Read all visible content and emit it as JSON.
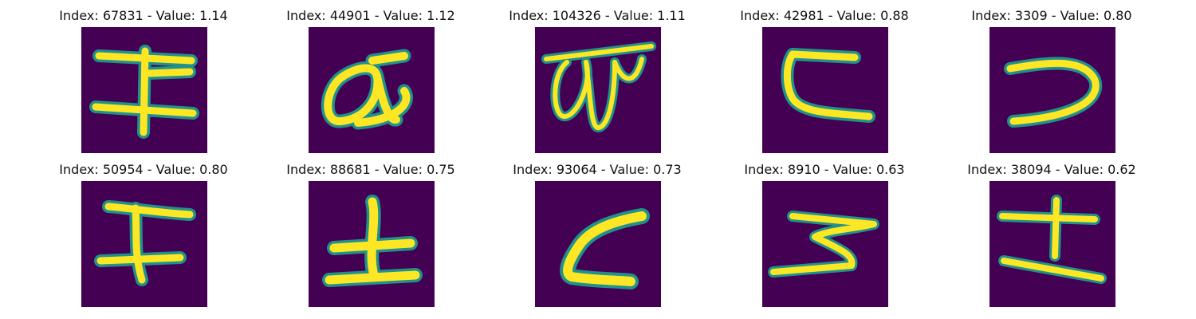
{
  "panels": [
    {
      "title": "Index: 67831 - Value: 1.14"
    },
    {
      "title": "Index: 44901 - Value: 1.12"
    },
    {
      "title": "Index: 104326 - Value: 1.11"
    },
    {
      "title": "Index: 42981 - Value: 0.88"
    },
    {
      "title": "Index: 3309 - Value: 0.80"
    },
    {
      "title": "Index: 50954 - Value: 0.80"
    },
    {
      "title": "Index: 88681 - Value: 0.75"
    },
    {
      "title": "Index: 93064 - Value: 0.73"
    },
    {
      "title": "Index: 8910 - Value: 0.63"
    },
    {
      "title": "Index: 38094 - Value: 0.62"
    }
  ],
  "colors": {
    "background": "#440154",
    "stroke_outer": "#21918c",
    "stroke_inner": "#fde725"
  }
}
